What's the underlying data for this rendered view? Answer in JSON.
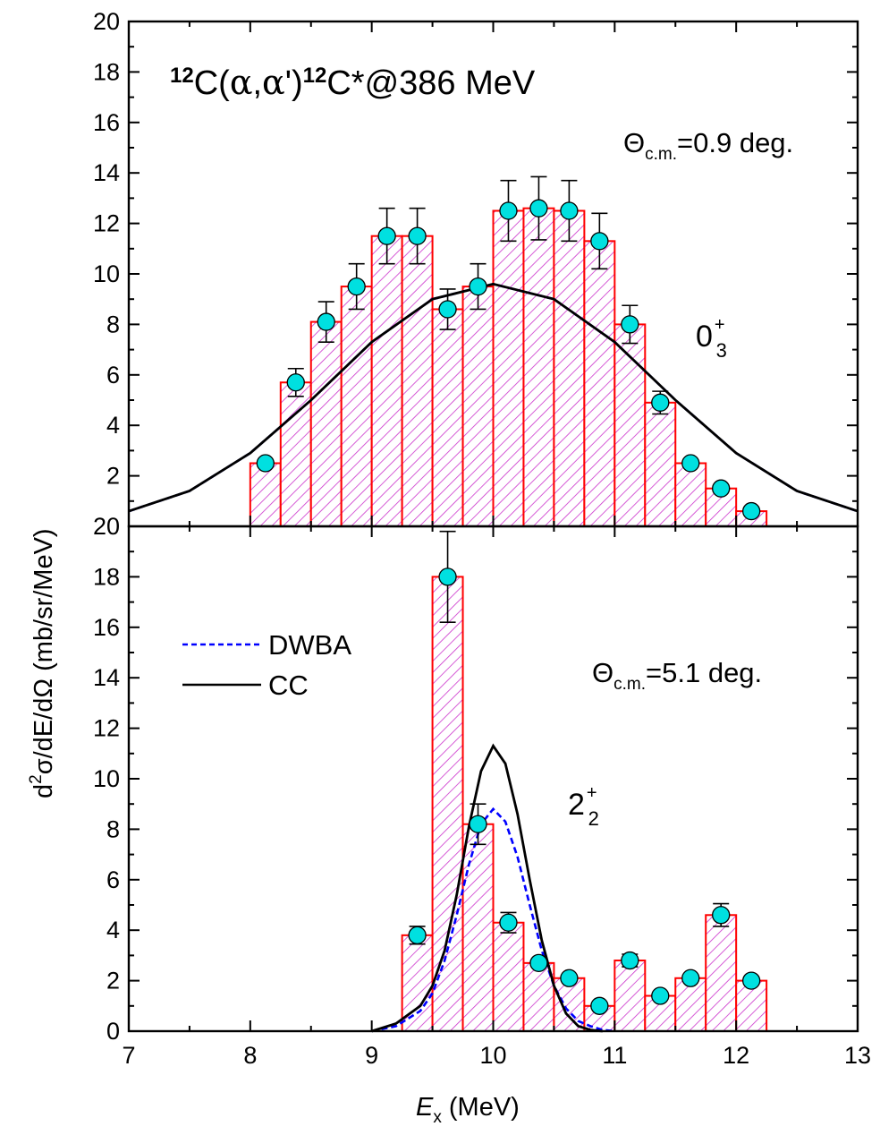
{
  "chart_data": [
    {
      "type": "bar",
      "panel": "top",
      "title": "12C(α,α')12C*@386 MeV",
      "title_parts": {
        "a": "12",
        "b": "C(",
        "c": "α",
        "d": ",",
        "e": "α",
        "f": "')",
        "g": "12",
        "h": "C*@386 MeV"
      },
      "angle_label": {
        "theta": "Θ",
        "sub": "c.m.",
        "value": "=0.9 deg."
      },
      "state_label": {
        "main": "0",
        "sup": "+",
        "sub": "3"
      },
      "xlim": [
        7,
        13
      ],
      "ylim": [
        0,
        20
      ],
      "yticks": [
        0,
        2,
        4,
        6,
        8,
        10,
        12,
        14,
        16,
        18,
        20
      ],
      "ytick_labels": [
        "",
        "2",
        "4",
        "6",
        "8",
        "10",
        "12",
        "14",
        "16",
        "18",
        "20"
      ],
      "bar_width": 0.25,
      "x": [
        8.125,
        8.375,
        8.625,
        8.875,
        9.125,
        9.375,
        9.625,
        9.875,
        10.125,
        10.375,
        10.625,
        10.875,
        11.125,
        11.375,
        11.625,
        11.875,
        12.125
      ],
      "values": [
        2.5,
        5.7,
        8.1,
        9.5,
        11.5,
        11.5,
        8.6,
        9.5,
        12.5,
        12.6,
        12.5,
        11.3,
        8.0,
        4.9,
        2.5,
        1.5,
        0.6
      ],
      "errors": [
        0.0,
        0.55,
        0.8,
        0.9,
        1.1,
        1.1,
        0.8,
        0.9,
        1.2,
        1.25,
        1.2,
        1.1,
        0.75,
        0.45,
        0.0,
        0.0,
        0.0
      ],
      "series": [
        {
          "name": "DWBA",
          "color": "#0000ff",
          "style": "dashed",
          "x": [
            7.0,
            7.5,
            8.0,
            8.5,
            9.0,
            9.5,
            10.0,
            10.5,
            11.0,
            11.5,
            12.0,
            12.5,
            13.0
          ],
          "values": [
            0.6,
            1.4,
            2.9,
            5.0,
            7.3,
            9.0,
            9.6,
            9.0,
            7.3,
            5.0,
            2.9,
            1.4,
            0.6
          ]
        },
        {
          "name": "CC",
          "color": "#000000",
          "style": "solid",
          "x": [
            7.0,
            7.5,
            8.0,
            8.5,
            9.0,
            9.5,
            10.0,
            10.5,
            11.0,
            11.5,
            12.0,
            12.5,
            13.0
          ],
          "values": [
            0.6,
            1.4,
            2.9,
            5.0,
            7.3,
            9.0,
            9.6,
            9.0,
            7.3,
            5.0,
            2.9,
            1.4,
            0.6
          ]
        }
      ]
    },
    {
      "type": "bar",
      "panel": "bottom",
      "angle_label": {
        "theta": "Θ",
        "sub": "c.m.",
        "value": "=5.1 deg."
      },
      "state_label": {
        "main": "2",
        "sup": "+",
        "sub": "2"
      },
      "xlim": [
        7,
        13
      ],
      "ylim": [
        0,
        20
      ],
      "yticks": [
        0,
        2,
        4,
        6,
        8,
        10,
        12,
        14,
        16,
        18,
        20
      ],
      "ytick_labels": [
        "0",
        "2",
        "4",
        "6",
        "8",
        "10",
        "12",
        "14",
        "16",
        "18",
        "20"
      ],
      "xticks": [
        7,
        8,
        9,
        10,
        11,
        12,
        13
      ],
      "xtick_labels": [
        "7",
        "8",
        "9",
        "10",
        "11",
        "12",
        "13"
      ],
      "bar_width": 0.25,
      "x": [
        9.375,
        9.625,
        9.875,
        10.125,
        10.375,
        10.625,
        10.875,
        11.125,
        11.375,
        11.625,
        11.875,
        12.125
      ],
      "values": [
        3.8,
        18.0,
        8.2,
        4.3,
        2.7,
        2.1,
        1.0,
        2.8,
        1.4,
        2.1,
        4.6,
        2.0
      ],
      "errors": [
        0.35,
        1.8,
        0.8,
        0.4,
        0.0,
        0.0,
        0.0,
        0.25,
        0.0,
        0.0,
        0.45,
        0.0
      ],
      "series": [
        {
          "name": "DWBA",
          "color": "#0000ff",
          "style": "dashed",
          "x": [
            9.0,
            9.2,
            9.4,
            9.5,
            9.6,
            9.7,
            9.8,
            9.9,
            10.0,
            10.1,
            10.2,
            10.3,
            10.4,
            10.5,
            10.6,
            10.7,
            10.8,
            10.9,
            11.0
          ],
          "values": [
            0.0,
            0.2,
            0.8,
            1.5,
            2.8,
            4.6,
            6.6,
            8.2,
            8.8,
            8.3,
            6.9,
            5.0,
            3.2,
            1.8,
            0.9,
            0.4,
            0.2,
            0.05,
            0.0
          ]
        },
        {
          "name": "CC",
          "color": "#000000",
          "style": "solid",
          "x": [
            9.0,
            9.2,
            9.4,
            9.5,
            9.6,
            9.7,
            9.8,
            9.9,
            10.0,
            10.1,
            10.2,
            10.3,
            10.4,
            10.5,
            10.6,
            10.7,
            10.8,
            10.9
          ],
          "values": [
            0.0,
            0.3,
            1.0,
            1.8,
            3.2,
            5.4,
            8.1,
            10.3,
            11.3,
            10.6,
            8.6,
            6.0,
            3.6,
            1.8,
            0.7,
            0.2,
            0.05,
            0.0
          ]
        }
      ]
    }
  ],
  "axes": {
    "xlabel_main": "E",
    "xlabel_sub": "x",
    "xlabel_unit": " (MeV)",
    "ylabel_pre": "d",
    "ylabel_sup": "2",
    "ylabel_post": "σ/dE/dΩ (mb/sr/MeV)"
  },
  "legend": {
    "placement": "upper-left of bottom panel",
    "entries": [
      {
        "label": "DWBA",
        "color": "#0000ff",
        "style": "dashed"
      },
      {
        "label": "CC",
        "color": "#000000",
        "style": "solid"
      }
    ]
  },
  "colors": {
    "bar_edge": "#ff0000",
    "hatch": "#cc33cc",
    "points": "#00e0e0"
  }
}
